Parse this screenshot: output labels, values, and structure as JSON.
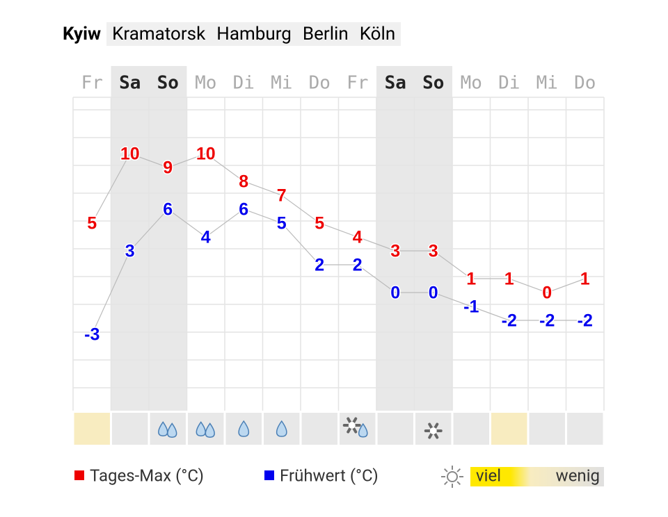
{
  "tabs": [
    "Kyiw",
    "Kramatorsk",
    "Hamburg",
    "Berlin",
    "Köln"
  ],
  "active_tab": 0,
  "chart_data": {
    "type": "line",
    "categories": [
      "Fr",
      "Sa",
      "So",
      "Mo",
      "Di",
      "Mi",
      "Do",
      "Fr",
      "Sa",
      "So",
      "Mo",
      "Di",
      "Mi",
      "Do"
    ],
    "weekend": [
      false,
      true,
      true,
      false,
      false,
      false,
      false,
      false,
      true,
      true,
      false,
      false,
      false,
      false
    ],
    "series": [
      {
        "name": "Tages-Max (°C)",
        "color": "#ee0000",
        "values": [
          5,
          10,
          9,
          10,
          8,
          7,
          5,
          4,
          3,
          3,
          1,
          1,
          0,
          1
        ]
      },
      {
        "name": "Frühwert (°C)",
        "color": "#0000ee",
        "values": [
          -3,
          3,
          6,
          4,
          6,
          5,
          2,
          2,
          0,
          0,
          -1,
          -2,
          -2,
          -2
        ]
      }
    ],
    "ylim": [
      -8.5,
      14
    ],
    "weather": [
      "sun",
      "none",
      "rain-heavy",
      "rain-heavy",
      "rain",
      "rain",
      "none",
      "snow-rain",
      "none",
      "snow",
      "none",
      "sun",
      "none",
      "none"
    ],
    "sun_legend": {
      "high": "viel",
      "low": "wenig"
    }
  }
}
